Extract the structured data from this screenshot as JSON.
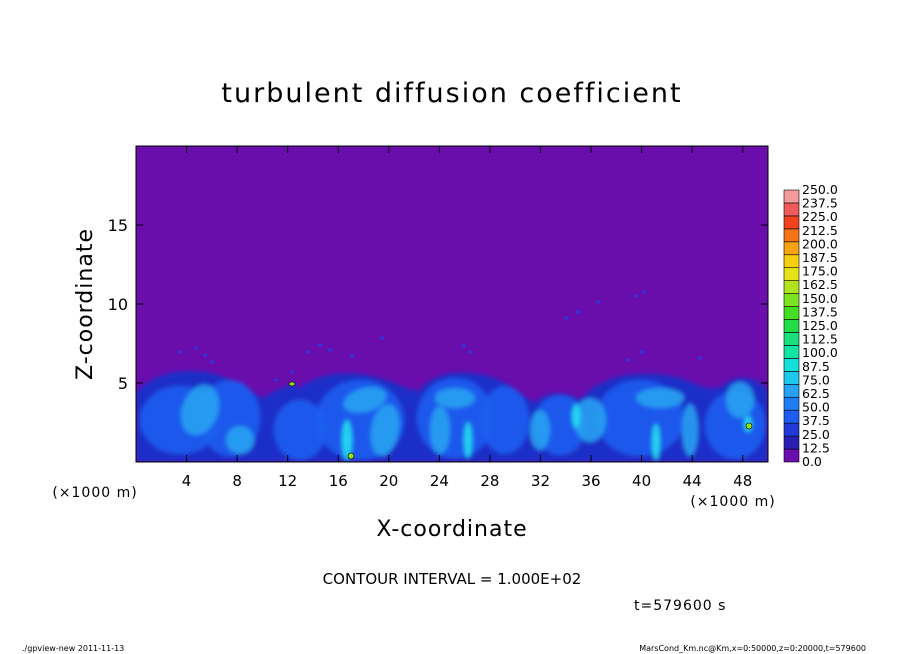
{
  "chart_data": {
    "type": "heatmap",
    "title": "turbulent diffusion coefficient",
    "xlabel": "X-coordinate",
    "ylabel": "Z-coordinate",
    "x_unit_left": "(×1000 m)",
    "x_unit_right": "(×1000 m)",
    "xlim": [
      0,
      50
    ],
    "ylim": [
      0,
      20
    ],
    "xticks": [
      "4",
      "8",
      "12",
      "16",
      "20",
      "24",
      "28",
      "32",
      "36",
      "40",
      "44",
      "48"
    ],
    "xtick_values": [
      4,
      8,
      12,
      16,
      20,
      24,
      28,
      32,
      36,
      40,
      44,
      48
    ],
    "yticks": [
      "5",
      "10",
      "15"
    ],
    "ytick_values": [
      5,
      10,
      15
    ],
    "colorbar_levels": [
      "0.0",
      "12.5",
      "25.0",
      "37.5",
      "50.0",
      "62.5",
      "75.0",
      "87.5",
      "100.0",
      "112.5",
      "125.0",
      "137.5",
      "150.0",
      "162.5",
      "175.0",
      "187.5",
      "200.0",
      "212.5",
      "225.0",
      "237.5",
      "250.0"
    ],
    "colorbar_colors": [
      "#6a0dad",
      "#2a1fb5",
      "#1f3ad6",
      "#1c5cf0",
      "#1f7ef5",
      "#25a2f2",
      "#1fc8ee",
      "#14e0d8",
      "#15e3a6",
      "#19e07a",
      "#22dc48",
      "#46de22",
      "#7be31f",
      "#aee31d",
      "#e6e21a",
      "#f7cf12",
      "#f7a414",
      "#f57417",
      "#f2421f",
      "#ef5b5b",
      "#f59a9a"
    ],
    "background_color": "#6a0dad",
    "contour_interval": "CONTOUR INTERVAL = 1.000E+02",
    "time_label": "t=579600 s"
  },
  "footer": {
    "left": "./gpview-new  2011-11-13",
    "right": "MarsCond_Km.nc@Km,x=0:50000,z=0:20000,t=579600"
  }
}
